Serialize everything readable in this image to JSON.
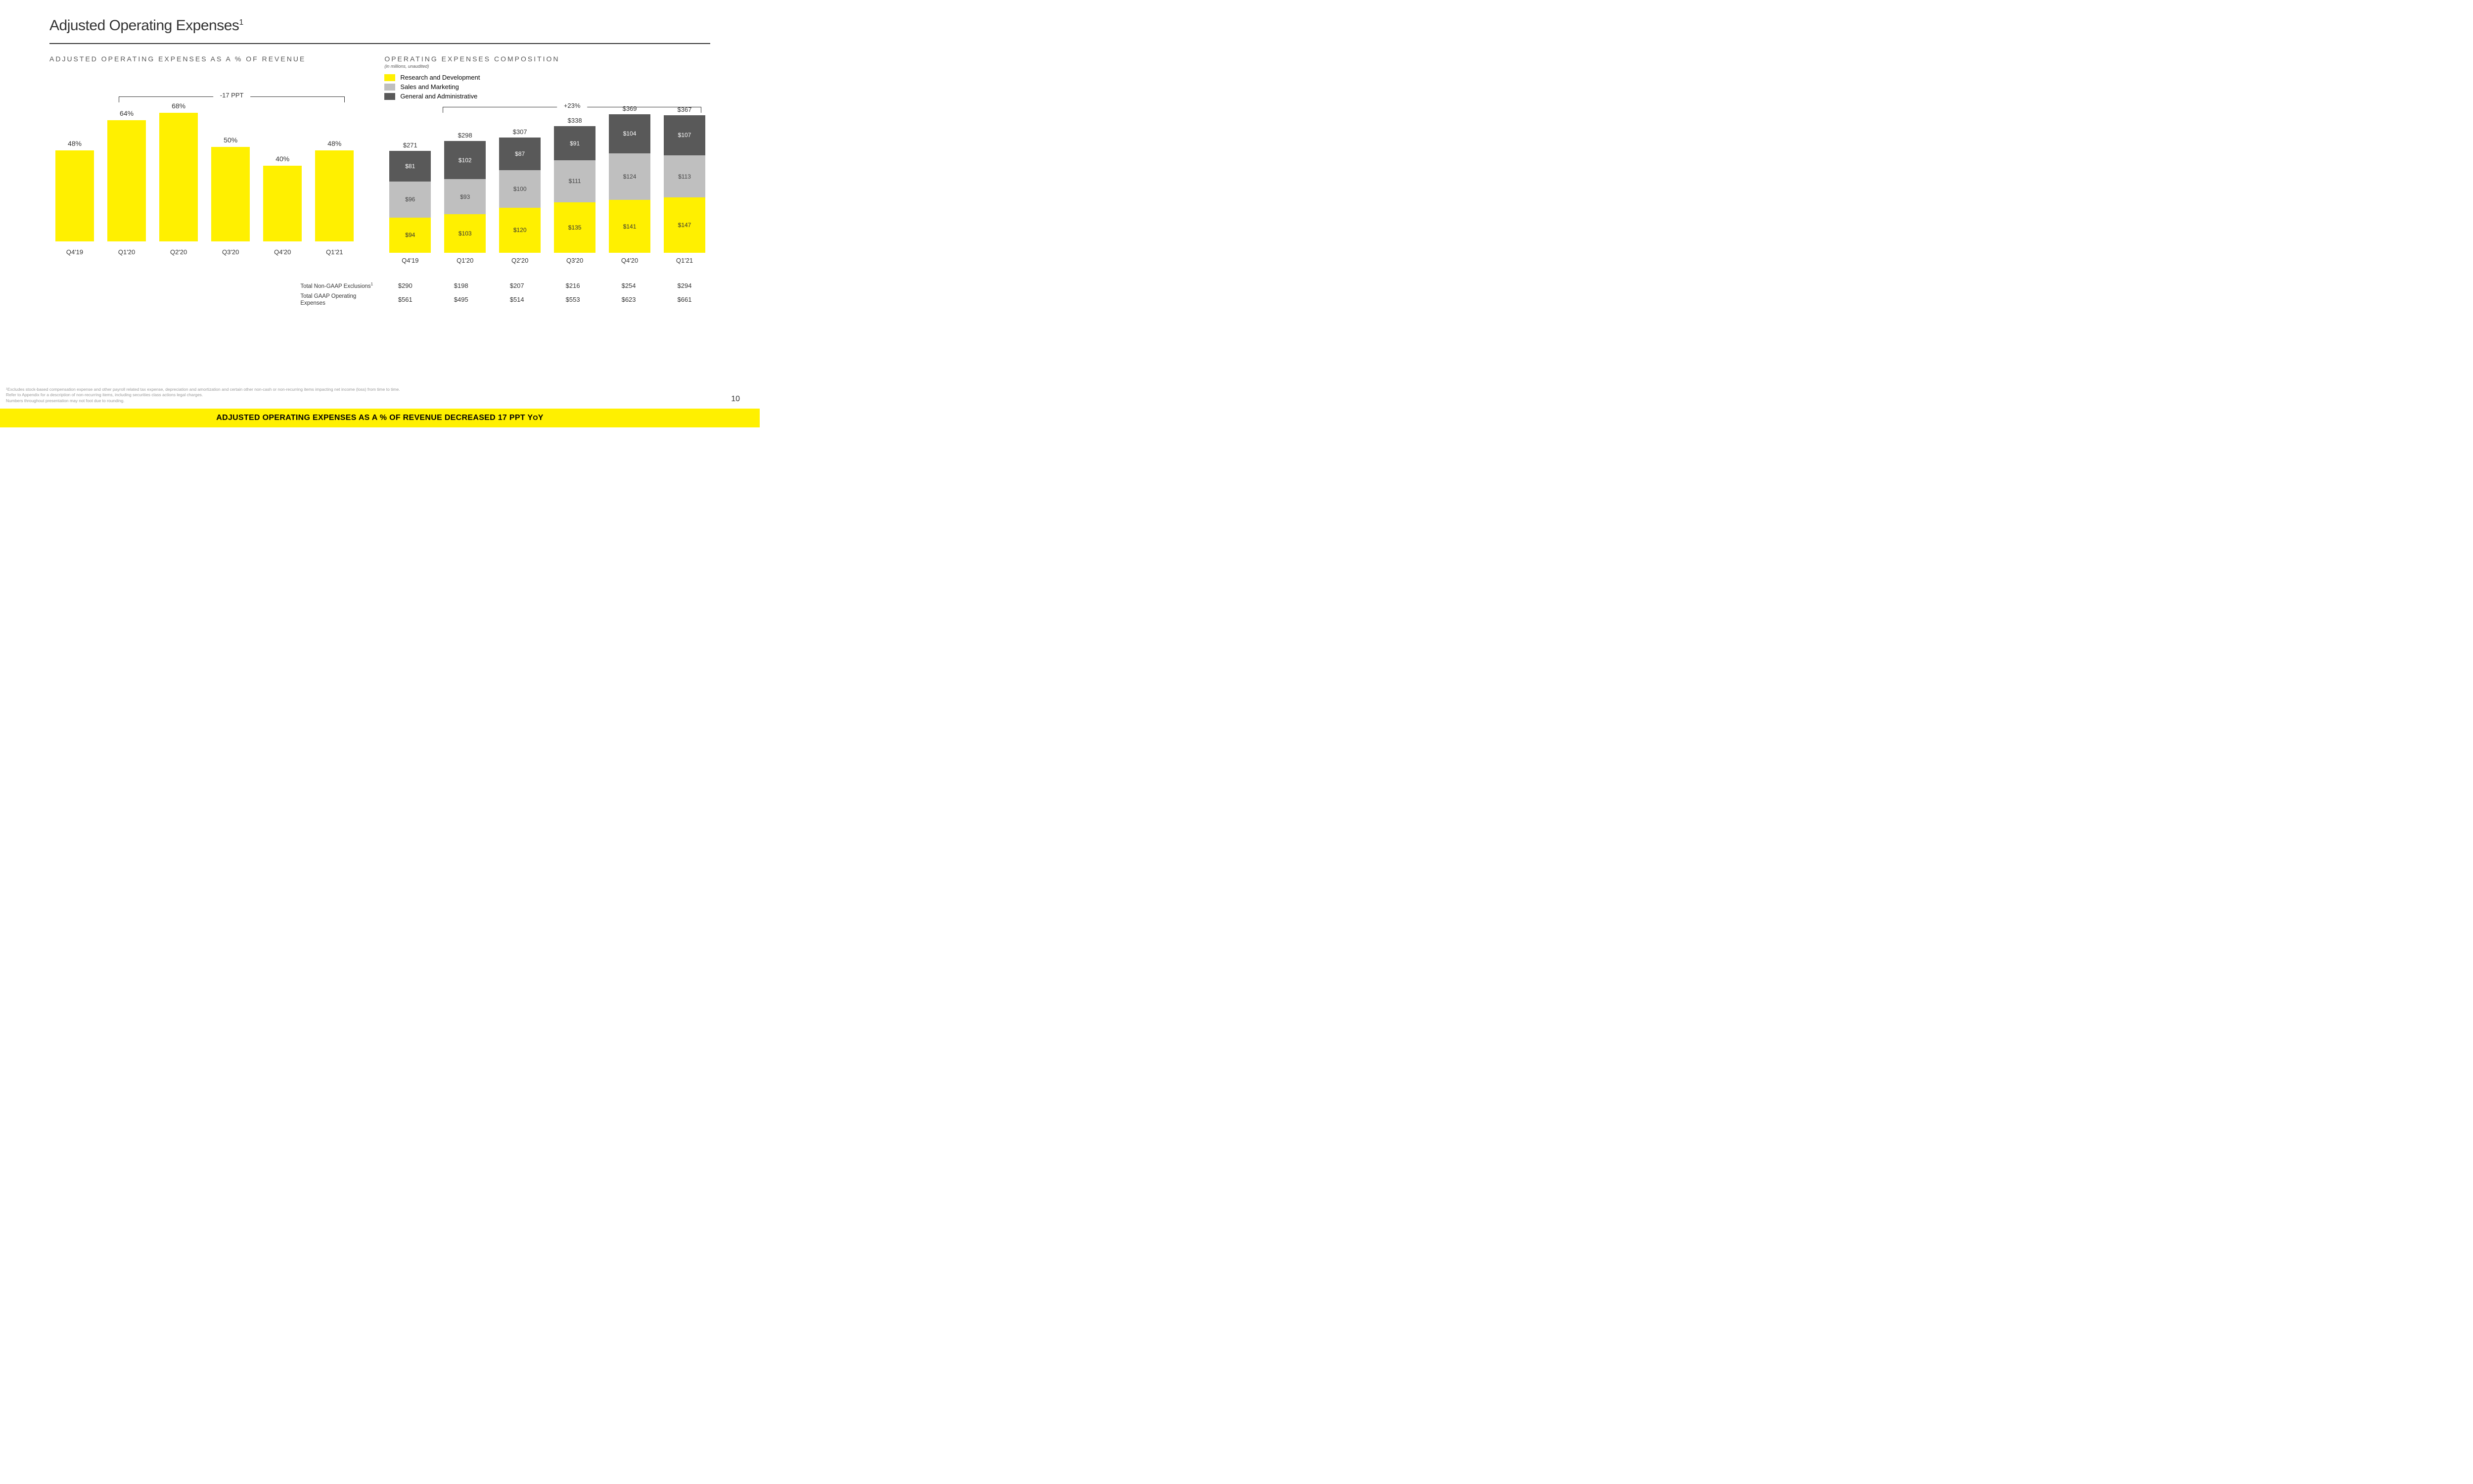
{
  "title": "Adjusted Operating Expenses",
  "title_superscript": "1",
  "left_chart": {
    "subtitle": "ADJUSTED OPERATING EXPENSES AS A % OF REVENUE",
    "type": "bar",
    "categories": [
      "Q4'19",
      "Q1'20",
      "Q2'20",
      "Q3'20",
      "Q4'20",
      "Q1'21"
    ],
    "values": [
      48,
      64,
      68,
      50,
      40,
      48
    ],
    "value_labels": [
      "48%",
      "64%",
      "68%",
      "50%",
      "40%",
      "48%"
    ],
    "bar_color": "#fff000",
    "bracket_label": "-17 PPT",
    "ylim": [
      0,
      68
    ],
    "label_fontsize": 14,
    "cat_fontsize": 13
  },
  "right_chart": {
    "subtitle": "OPERATING EXPENSES COMPOSITION",
    "subnote": "(in millions, unaudited)",
    "type": "stacked-bar",
    "legend": [
      {
        "label": "Research and Development",
        "color": "#fff000"
      },
      {
        "label": "Sales and Marketing",
        "color": "#bfbfbf"
      },
      {
        "label": "General and Administrative",
        "color": "#595959"
      }
    ],
    "categories": [
      "Q4'19",
      "Q1'20",
      "Q2'20",
      "Q3'20",
      "Q4'20",
      "Q1'21"
    ],
    "series_rd": [
      94,
      103,
      120,
      135,
      141,
      147
    ],
    "series_sm": [
      96,
      93,
      100,
      111,
      124,
      113
    ],
    "series_ga": [
      81,
      102,
      87,
      91,
      104,
      107
    ],
    "totals": [
      271,
      298,
      307,
      338,
      369,
      367
    ],
    "total_labels": [
      "$271",
      "$298",
      "$307",
      "$338",
      "$369",
      "$367"
    ],
    "rd_labels": [
      "$94",
      "$103",
      "$120",
      "$135",
      "$141",
      "$147"
    ],
    "sm_labels": [
      "$96",
      "$93",
      "$100",
      "$111",
      "$124",
      "$113"
    ],
    "ga_labels": [
      "$81",
      "$102",
      "$87",
      "$91",
      "$104",
      "$107"
    ],
    "colors": {
      "rd": "#fff000",
      "sm": "#bfbfbf",
      "ga": "#595959"
    },
    "bracket_label": "+23%",
    "ylim": [
      0,
      369
    ]
  },
  "table": {
    "row_labels": [
      "Total Non-GAAP Exclusions",
      "Total GAAP Operating Expenses"
    ],
    "row1_superscript": "1",
    "row1": [
      "$290",
      "$198",
      "$207",
      "$216",
      "$254",
      "$294"
    ],
    "row2": [
      "$561",
      "$495",
      "$514",
      "$553",
      "$623",
      "$661"
    ]
  },
  "footnotes": [
    "¹Excludes stock-based compensation expense and other payroll related tax expense, depreciation and amortization and certain other non-cash or non-recurring items impacting net income (loss) from time to time.",
    "Refer to Appendix for a description of non-recurring items, including securities class actions legal charges.",
    "Numbers throughout presentation may not foot due to rounding."
  ],
  "page_number": "10",
  "banner": {
    "text_before": "ADJUSTED OPERATING EXPENSES AS A % OF REVENUE DECREASED 17 PPT Y",
    "text_small": "O",
    "text_after": "Y",
    "background_color": "#fff000",
    "text_color": "#000000"
  },
  "colors": {
    "background": "#ffffff",
    "text": "#333333",
    "divider": "#333333",
    "footnote_text": "#999999"
  }
}
